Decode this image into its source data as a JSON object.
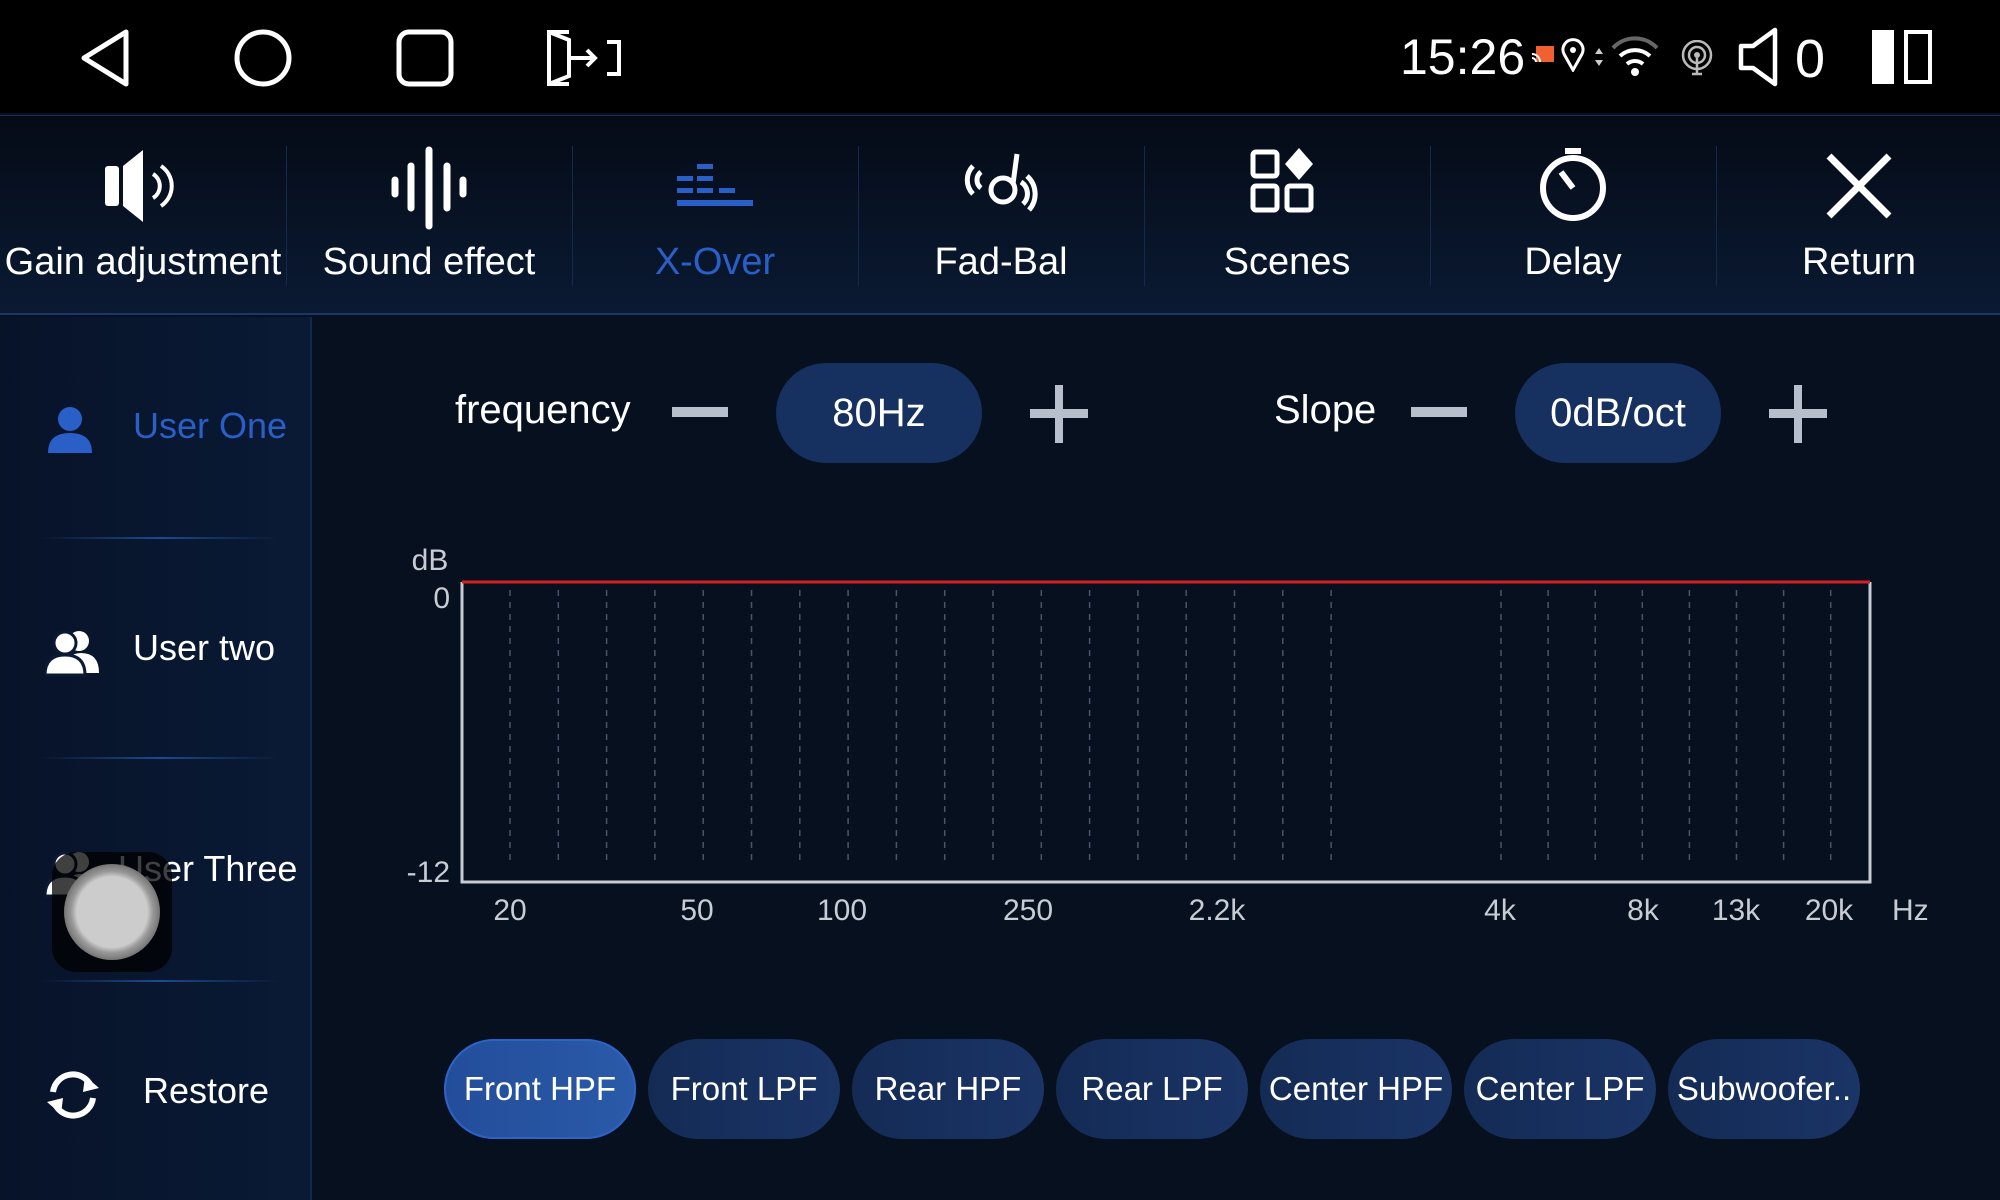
{
  "status_bar": {
    "time": "15:26",
    "volume": "0",
    "icons": [
      "back-icon",
      "home-icon",
      "recents-icon",
      "screen-cast-icon",
      "cast-icon",
      "location-icon",
      "data-arrows-icon",
      "wifi-icon",
      "hotspot-icon",
      "speaker-icon",
      "split-screen-icon"
    ]
  },
  "tabs": [
    {
      "label": "Gain adjustment",
      "icon": "speaker-icon"
    },
    {
      "label": "Sound effect",
      "icon": "waveform-icon"
    },
    {
      "label": "X-Over",
      "icon": "equalizer-icon",
      "active": true
    },
    {
      "label": "Fad-Bal",
      "icon": "fader-icon"
    },
    {
      "label": "Scenes",
      "icon": "grid-icon"
    },
    {
      "label": "Delay",
      "icon": "timer-icon"
    },
    {
      "label": "Return",
      "icon": "close-icon"
    }
  ],
  "sidebar": {
    "items": [
      {
        "label": "User One",
        "icon": "user-icon",
        "active": true
      },
      {
        "label": "User two",
        "icon": "users-icon"
      },
      {
        "label": "User Three",
        "icon": "users-icon"
      },
      {
        "label": "Restore",
        "icon": "refresh-icon"
      }
    ]
  },
  "controls": {
    "frequency_label": "frequency",
    "frequency_value": "80Hz",
    "slope_label": "Slope",
    "slope_value": "0dB/oct"
  },
  "channels": [
    {
      "label": "Front HPF",
      "active": true
    },
    {
      "label": "Front LPF"
    },
    {
      "label": "Rear HPF"
    },
    {
      "label": "Rear LPF"
    },
    {
      "label": "Center HPF"
    },
    {
      "label": "Center LPF"
    },
    {
      "label": "Subwoofer.."
    }
  ],
  "colors": {
    "accent": "#2a5fc7",
    "curve": "#d42020",
    "background": "#06101f"
  },
  "chart_data": {
    "type": "line",
    "ylabel": "dB",
    "xunit": "Hz",
    "ylim": [
      -12,
      0
    ],
    "yticks": [
      "0",
      "-12"
    ],
    "xticks": [
      "20",
      "50",
      "100",
      "250",
      "2.2k",
      "4k",
      "8k",
      "13k",
      "20k"
    ],
    "grid": "vertical dashed",
    "series": [
      {
        "values": [
          0,
          0,
          0,
          0,
          0,
          0,
          0,
          0,
          0
        ]
      }
    ]
  }
}
